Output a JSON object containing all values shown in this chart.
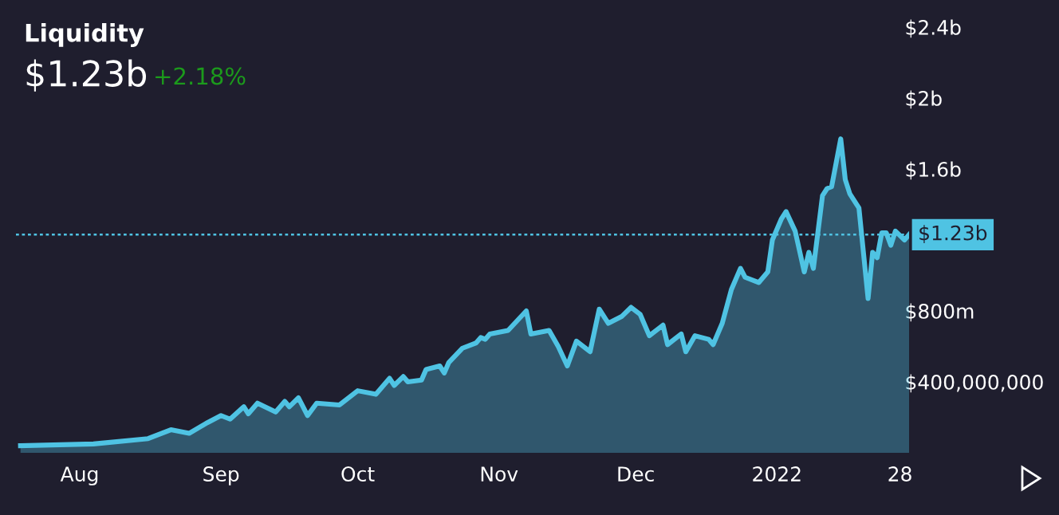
{
  "chart_data": {
    "type": "area",
    "title": "Liquidity",
    "subtitle": "$1.23b",
    "annotations": [
      "+2.18%"
    ],
    "x": [
      "2021-07-19",
      "2021-08-04",
      "2021-08-16",
      "2021-08-21",
      "2021-08-25",
      "2021-08-29",
      "2021-09-01",
      "2021-09-03",
      "2021-09-06",
      "2021-09-07",
      "2021-09-09",
      "2021-09-13",
      "2021-09-15",
      "2021-09-16",
      "2021-09-18",
      "2021-09-20",
      "2021-09-22",
      "2021-09-27",
      "2021-10-01",
      "2021-10-05",
      "2021-10-08",
      "2021-10-09",
      "2021-10-11",
      "2021-10-12",
      "2021-10-15",
      "2021-10-16",
      "2021-10-19",
      "2021-10-20",
      "2021-10-21",
      "2021-10-24",
      "2021-10-27",
      "2021-10-28",
      "2021-10-29",
      "2021-10-30",
      "2021-11-03",
      "2021-11-07",
      "2021-11-08",
      "2021-11-12",
      "2021-11-14",
      "2021-11-16",
      "2021-11-18",
      "2021-11-21",
      "2021-11-23",
      "2021-11-25",
      "2021-11-28",
      "2021-11-30",
      "2021-12-02",
      "2021-12-04",
      "2021-12-07",
      "2021-12-08",
      "2021-12-11",
      "2021-12-12",
      "2021-12-14",
      "2021-12-17",
      "2021-12-18",
      "2021-12-20",
      "2021-12-22",
      "2021-12-24",
      "2021-12-25",
      "2021-12-28",
      "2021-12-30",
      "2021-12-31",
      "2022-01-02",
      "2022-01-03",
      "2022-01-05",
      "2022-01-07",
      "2022-01-08",
      "2022-01-09",
      "2022-01-11",
      "2022-01-12",
      "2022-01-13",
      "2022-01-15",
      "2022-01-16",
      "2022-01-17",
      "2022-01-19",
      "2022-01-21",
      "2022-01-22",
      "2022-01-23",
      "2022-01-24",
      "2022-01-25",
      "2022-01-26",
      "2022-01-27",
      "2022-01-29",
      "2022-01-30"
    ],
    "series": [
      {
        "color": "#4fc3e3",
        "values": [
          40000000,
          50000000,
          80000000,
          130000000,
          110000000,
          170000000,
          210000000,
          190000000,
          260000000,
          220000000,
          280000000,
          230000000,
          290000000,
          260000000,
          310000000,
          210000000,
          280000000,
          270000000,
          350000000,
          330000000,
          420000000,
          380000000,
          430000000,
          400000000,
          410000000,
          470000000,
          490000000,
          450000000,
          510000000,
          590000000,
          620000000,
          650000000,
          640000000,
          670000000,
          690000000,
          800000000,
          670000000,
          690000000,
          600000000,
          490000000,
          630000000,
          570000000,
          810000000,
          730000000,
          770000000,
          820000000,
          780000000,
          660000000,
          720000000,
          610000000,
          670000000,
          570000000,
          660000000,
          640000000,
          610000000,
          730000000,
          920000000,
          1040000000,
          990000000,
          960000000,
          1020000000,
          1200000000,
          1320000000,
          1360000000,
          1250000000,
          1020000000,
          1130000000,
          1040000000,
          1450000000,
          1490000000,
          1500000000,
          1770000000,
          1540000000,
          1460000000,
          1380000000,
          870000000,
          1130000000,
          1100000000,
          1240000000,
          1240000000,
          1170000000,
          1250000000,
          1200000000,
          1230000000
        ]
      }
    ],
    "xlim": [
      "2021-07-18",
      "2022-01-30"
    ],
    "xticks": [
      {
        "value": "2021-08-01",
        "label": "Aug"
      },
      {
        "value": "2021-09-01",
        "label": "Sep"
      },
      {
        "value": "2021-10-01",
        "label": "Oct"
      },
      {
        "value": "2021-11-01",
        "label": "Nov"
      },
      {
        "value": "2021-12-01",
        "label": "Dec"
      },
      {
        "value": "2022-01-01",
        "label": "2022"
      },
      {
        "value": "2022-01-28",
        "label": "28"
      }
    ],
    "ylim": [
      0,
      2400000000
    ],
    "yticks": [
      {
        "value": 400000000,
        "label": "$400,000,000"
      },
      {
        "value": 800000000,
        "label": "$800m"
      },
      {
        "value": 1600000000,
        "label": "$1.6b"
      },
      {
        "value": 2000000000,
        "label": "$2b"
      },
      {
        "value": 2400000000,
        "label": "$2.4b"
      }
    ],
    "ref_lines": [
      {
        "axis": "y",
        "value": 1230000000,
        "label": "$1.23b",
        "color": "#4fc3e3",
        "line_style": "dotted"
      }
    ],
    "grid": false
  }
}
